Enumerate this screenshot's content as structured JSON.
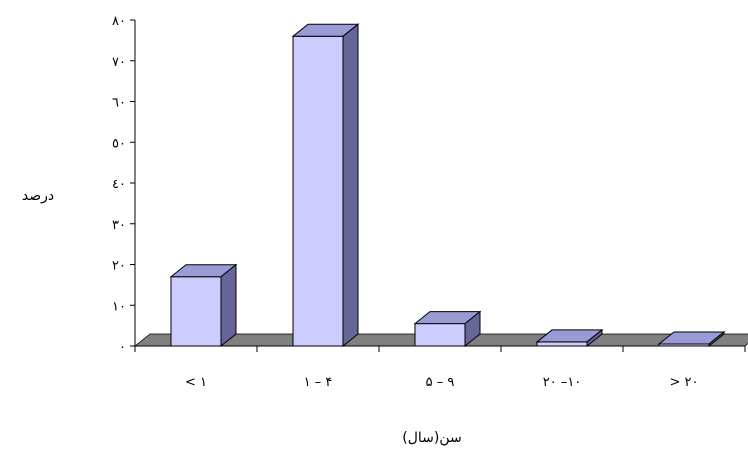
{
  "chart_data": {
    "type": "bar",
    "style": "3d-column",
    "title": "",
    "xlabel": "سن(سال)",
    "ylabel": "درصد",
    "categories": [
      "< ۱",
      "۱ – ۴",
      "۵ – ۹",
      "۲۰ –۱۰",
      "> ۲۰"
    ],
    "values": [
      17,
      76,
      5.5,
      1,
      0.5
    ],
    "ylim": [
      0,
      80
    ],
    "yticks": [
      {
        "value": 0,
        "label": "۰"
      },
      {
        "value": 10,
        "label": "۱۰"
      },
      {
        "value": 20,
        "label": "۲۰"
      },
      {
        "value": 30,
        "label": "۳۰"
      },
      {
        "value": 40,
        "label": "٤۰"
      },
      {
        "value": 50,
        "label": "٥۰"
      },
      {
        "value": 60,
        "label": "٦۰"
      },
      {
        "value": 70,
        "label": "۷۰"
      },
      {
        "value": 80,
        "label": "۸۰"
      }
    ],
    "grid": false,
    "legend": "none",
    "colors": {
      "bar_front": "#ccccff",
      "bar_top": "#9a9ad6",
      "bar_side": "#666699",
      "floor": "#808080",
      "axis": "#000000"
    }
  }
}
